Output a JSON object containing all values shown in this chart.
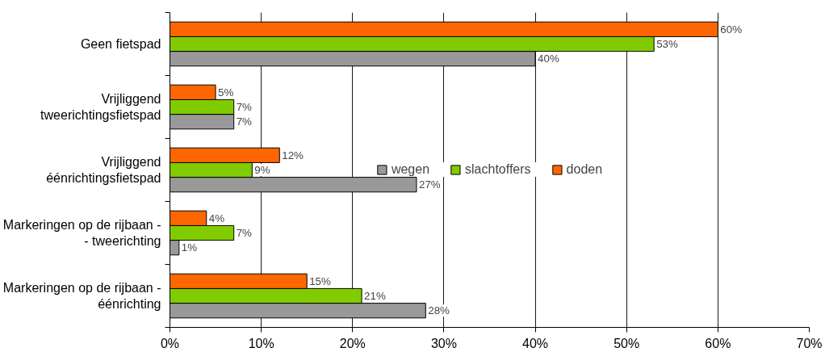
{
  "chart_data": {
    "type": "bar",
    "orientation": "horizontal",
    "categories": [
      "Geen fietspad",
      "Vrijliggend tweerichtingsfietspad",
      "Vrijliggend éénrichtingsfietspad",
      "Markeringen op de rijbaan - - tweerichting",
      "Markeringen op de rijbaan - éénrichting"
    ],
    "series": [
      {
        "name": "wegen",
        "color": "#999999",
        "values": [
          40,
          7,
          27,
          1,
          28
        ],
        "value_labels": [
          "40%",
          "7%",
          "27%",
          "1%",
          "28%"
        ]
      },
      {
        "name": "slachtoffers",
        "color": "#80cc00",
        "values": [
          53,
          7,
          9,
          7,
          21
        ],
        "value_labels": [
          "53%",
          "7%",
          "9%",
          "7%",
          "21%"
        ]
      },
      {
        "name": "doden",
        "color": "#ff6600",
        "values": [
          60,
          5,
          12,
          4,
          15
        ],
        "value_labels": [
          "60%",
          "5%",
          "12%",
          "4%",
          "15%"
        ]
      }
    ],
    "xlim": [
      0,
      70
    ],
    "xticks": [
      {
        "value": 0,
        "label": "0%"
      },
      {
        "value": 10,
        "label": "10%"
      },
      {
        "value": 20,
        "label": "20%"
      },
      {
        "value": 30,
        "label": "30%"
      },
      {
        "value": 40,
        "label": "40%"
      },
      {
        "value": 50,
        "label": "50%"
      },
      {
        "value": 60,
        "label": "60%"
      },
      {
        "value": 70,
        "label": "70%"
      }
    ],
    "grid": "x",
    "legend": "center"
  }
}
